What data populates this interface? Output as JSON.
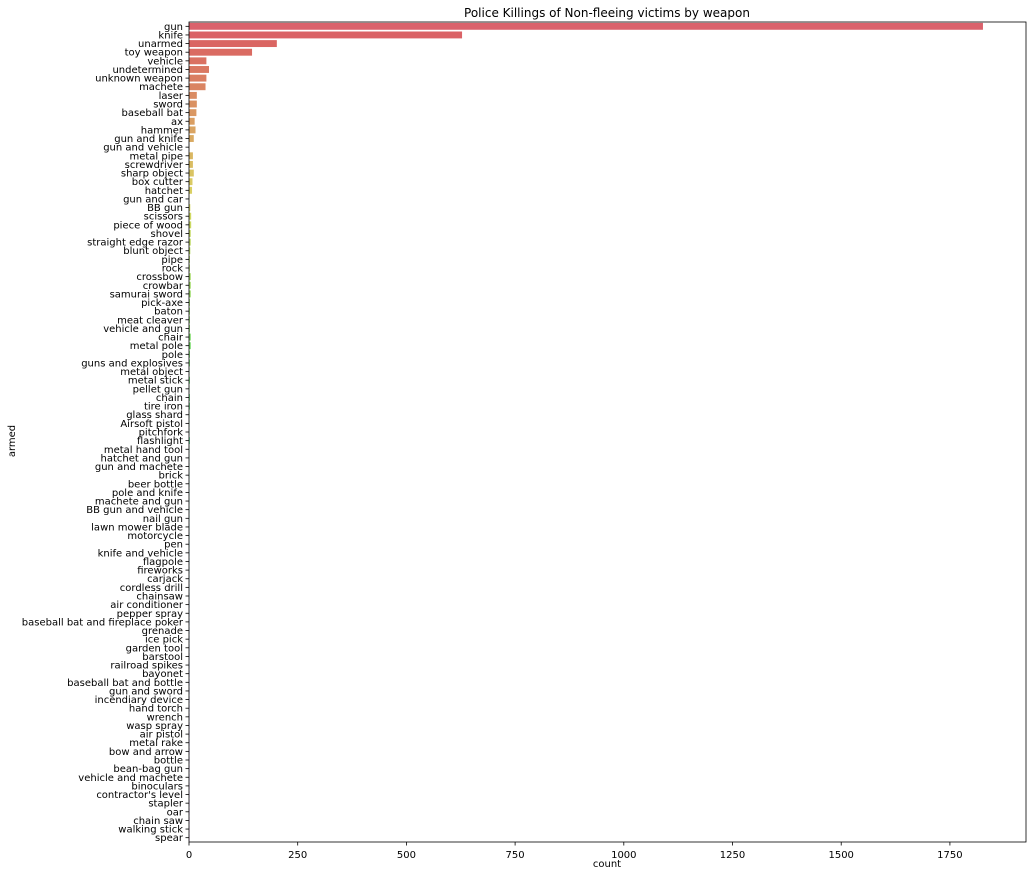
{
  "chart_data": {
    "type": "bar",
    "orientation": "horizontal",
    "title": "Police Killings of Non-fleeing  victims by weapon",
    "xlabel": "count",
    "ylabel": "armed",
    "xlim": [
      0,
      1925
    ],
    "xticks": [
      0,
      250,
      500,
      750,
      1000,
      1250,
      1500,
      1750
    ],
    "grid": false,
    "legend": "none",
    "palette": "husl",
    "categories": [
      "gun",
      "knife",
      "unarmed",
      "toy weapon",
      "vehicle",
      "undetermined",
      "unknown weapon",
      "machete",
      "laser",
      "sword",
      "baseball bat",
      "ax",
      "hammer",
      "gun and knife",
      "gun and vehicle",
      "metal pipe",
      "screwdriver",
      "sharp object",
      "box cutter",
      "hatchet",
      "gun and car",
      "BB gun",
      "scissors",
      "piece of wood",
      "shovel",
      "straight edge razor",
      "blunt object",
      "pipe",
      "rock",
      "crossbow",
      "crowbar",
      "samurai sword",
      "pick-axe",
      "baton",
      "meat cleaver",
      "vehicle and gun",
      "chair",
      "metal pole",
      "pole",
      "guns and explosives",
      "metal object",
      "metal stick",
      "pellet gun",
      "chain",
      "tire iron",
      "glass shard",
      "Airsoft pistol",
      "pitchfork",
      "flashlight",
      "metal hand tool",
      "hatchet and gun",
      "gun and machete",
      "brick",
      "beer bottle",
      "pole and knife",
      "machete and gun",
      "BB gun and vehicle",
      "nail gun",
      "lawn mower blade",
      "motorcycle",
      "pen",
      "knife and vehicle",
      "flagpole",
      "fireworks",
      "carjack",
      "cordless drill",
      "chainsaw",
      "air conditioner",
      "pepper spray",
      "baseball bat and fireplace poker",
      "grenade",
      "ice pick",
      "garden tool",
      "barstool",
      "railroad spikes",
      "bayonet",
      "baseball bat and bottle",
      "gun and sword",
      "incendiary device",
      "hand torch",
      "wrench",
      "wasp spray",
      "air pistol",
      "metal rake",
      "bow and arrow",
      "bottle",
      "bean-bag gun",
      "vehicle and machete",
      "binoculars",
      "contractor's level",
      "stapler",
      "oar",
      "chain saw",
      "walking stick",
      "spear"
    ],
    "values": [
      1826,
      628,
      202,
      145,
      40,
      46,
      40,
      38,
      18,
      18,
      17,
      13,
      15,
      11,
      1,
      9,
      9,
      11,
      8,
      7,
      1,
      3,
      5,
      5,
      4,
      4,
      3,
      2,
      2,
      4,
      4,
      4,
      2,
      2,
      2,
      2,
      4,
      4,
      2,
      2,
      1,
      2,
      1,
      2,
      2,
      1,
      1,
      1,
      2,
      1,
      1,
      1,
      1,
      1,
      1,
      1,
      1,
      1,
      1,
      1,
      1,
      1,
      1,
      1,
      1,
      1,
      1,
      1,
      1,
      1,
      1,
      1,
      1,
      1,
      1,
      1,
      1,
      1,
      1,
      1,
      1,
      1,
      1,
      1,
      1,
      1,
      1,
      1,
      1,
      1,
      1,
      1,
      1,
      1,
      1
    ]
  }
}
